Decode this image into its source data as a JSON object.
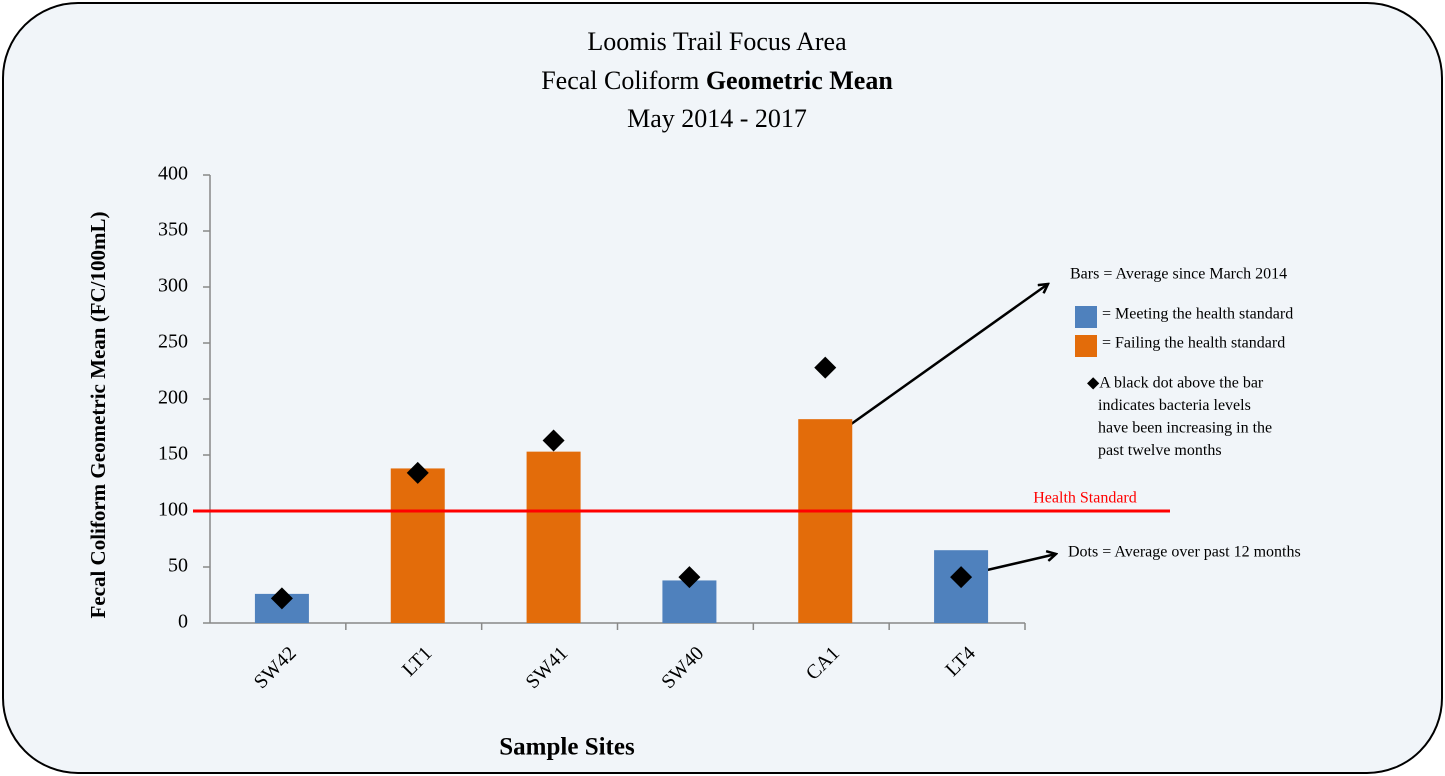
{
  "chart_data": {
    "type": "bar",
    "title": {
      "line1": "Loomis Trail Focus Area",
      "line2": "Fecal Coliform",
      "line2_bold": "Geometric Mean",
      "line3": "May 2014 - 2017"
    },
    "x_label": "Sample Sites",
    "y_label": "Fecal Coliform Geometric Mean (FC/100mL)",
    "categories": [
      "SW42",
      "LT1",
      "SW41",
      "SW40",
      "CA1",
      "LT4"
    ],
    "series": [
      {
        "type": "bar",
        "values": [
          26,
          138,
          153,
          38,
          182,
          65
        ],
        "colors": [
          "#4f81bd",
          "#e36c0a",
          "#e36c0a",
          "#4f81bd",
          "#e36c0a",
          "#4f81bd"
        ]
      },
      {
        "type": "scatter",
        "values": [
          22,
          134,
          163,
          41,
          228,
          41
        ],
        "color": "#000000"
      }
    ],
    "ylim": [
      0,
      400
    ],
    "yticks": [
      0,
      50,
      100,
      150,
      200,
      250,
      300,
      350,
      400
    ],
    "reference_line": {
      "value": 100,
      "label": "Health Standard",
      "color": "#ff0000"
    },
    "annotations": {
      "bars": "Bars = Average since March 2014",
      "legend": [
        {
          "color": "#4f81bd",
          "label": "= Meeting the health standard"
        },
        {
          "color": "#e36c0a",
          "label": "= Failing the health standard"
        }
      ],
      "dot_note": [
        "◆A black dot above the bar",
        "indicates bacteria levels",
        "have been increasing in the",
        "past twelve months"
      ],
      "dots": "Dots = Average over past 12 months"
    }
  }
}
